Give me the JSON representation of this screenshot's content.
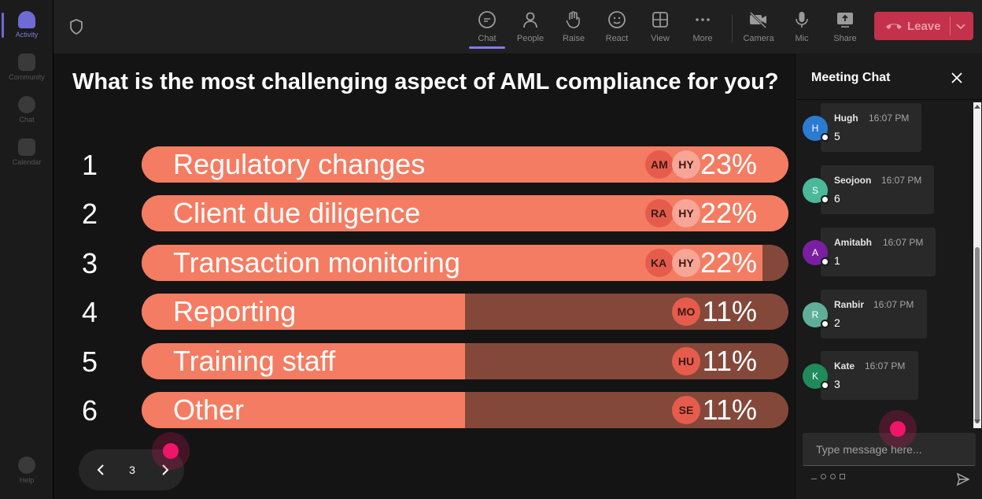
{
  "rail": {
    "items": [
      {
        "label": "Activity",
        "icon": "bell-icon",
        "active": true
      },
      {
        "label": "Community",
        "icon": "community-icon",
        "active": false
      },
      {
        "label": "Chat",
        "icon": "chat-icon",
        "active": false
      },
      {
        "label": "Calendar",
        "icon": "calendar-icon",
        "active": false
      }
    ],
    "help": {
      "label": "Help",
      "icon": "help-icon"
    }
  },
  "toolbar": {
    "buttons": [
      {
        "label": "Chat",
        "icon": "chat-icon",
        "active": true
      },
      {
        "label": "People",
        "icon": "people-icon",
        "active": false
      },
      {
        "label": "Raise",
        "icon": "hand-icon",
        "active": false
      },
      {
        "label": "React",
        "icon": "smiley-icon",
        "active": false
      },
      {
        "label": "View",
        "icon": "grid-icon",
        "active": false
      },
      {
        "label": "More",
        "icon": "more-icon",
        "active": false
      },
      {
        "label": "Camera",
        "icon": "camera-off-icon",
        "active": false
      },
      {
        "label": "Mic",
        "icon": "mic-icon",
        "active": false
      },
      {
        "label": "Share",
        "icon": "share-icon",
        "active": false
      }
    ],
    "leave_label": "Leave",
    "leave_color": "#c4314b"
  },
  "poll": {
    "question": "What is the most challenging aspect of AML compliance for you?",
    "bar_color": "#f47c62",
    "bar_track_color": "#84483a",
    "options": [
      {
        "num": "1",
        "label": "Regulatory changes",
        "pct": "23%",
        "fill": 1.0,
        "avatars": [
          "AM",
          "HY"
        ]
      },
      {
        "num": "2",
        "label": "Client due diligence",
        "pct": "22%",
        "fill": 1.0,
        "avatars": [
          "RA",
          "HY"
        ]
      },
      {
        "num": "3",
        "label": "Transaction monitoring",
        "pct": "22%",
        "fill": 0.96,
        "avatars": [
          "KA",
          "HY"
        ]
      },
      {
        "num": "4",
        "label": "Reporting",
        "pct": "11%",
        "fill": 0.5,
        "avatars": [
          "MO"
        ]
      },
      {
        "num": "5",
        "label": "Training staff",
        "pct": "11%",
        "fill": 0.5,
        "avatars": [
          "HU"
        ]
      },
      {
        "num": "6",
        "label": "Other",
        "pct": "11%",
        "fill": 0.5,
        "avatars": [
          "SE"
        ]
      }
    ]
  },
  "pager": {
    "page": "3"
  },
  "chat": {
    "title": "Meeting Chat",
    "messages": [
      {
        "initial": "H",
        "name": "Hugh",
        "time": "16:07 PM",
        "text": "5",
        "color": "#2b7bd1"
      },
      {
        "initial": "S",
        "name": "Seojoon",
        "time": "16:07 PM",
        "text": "6",
        "color": "#4bb89c"
      },
      {
        "initial": "A",
        "name": "Amitabh",
        "time": "16:07 PM",
        "text": "1",
        "color": "#7a1fa2"
      },
      {
        "initial": "R",
        "name": "Ranbir",
        "time": "16:07 PM",
        "text": "2",
        "color": "#5fae9a"
      },
      {
        "initial": "K",
        "name": "Kate",
        "time": "16:07 PM",
        "text": "3",
        "color": "#1f8a5a"
      }
    ],
    "input_placeholder": "Type message here..."
  }
}
